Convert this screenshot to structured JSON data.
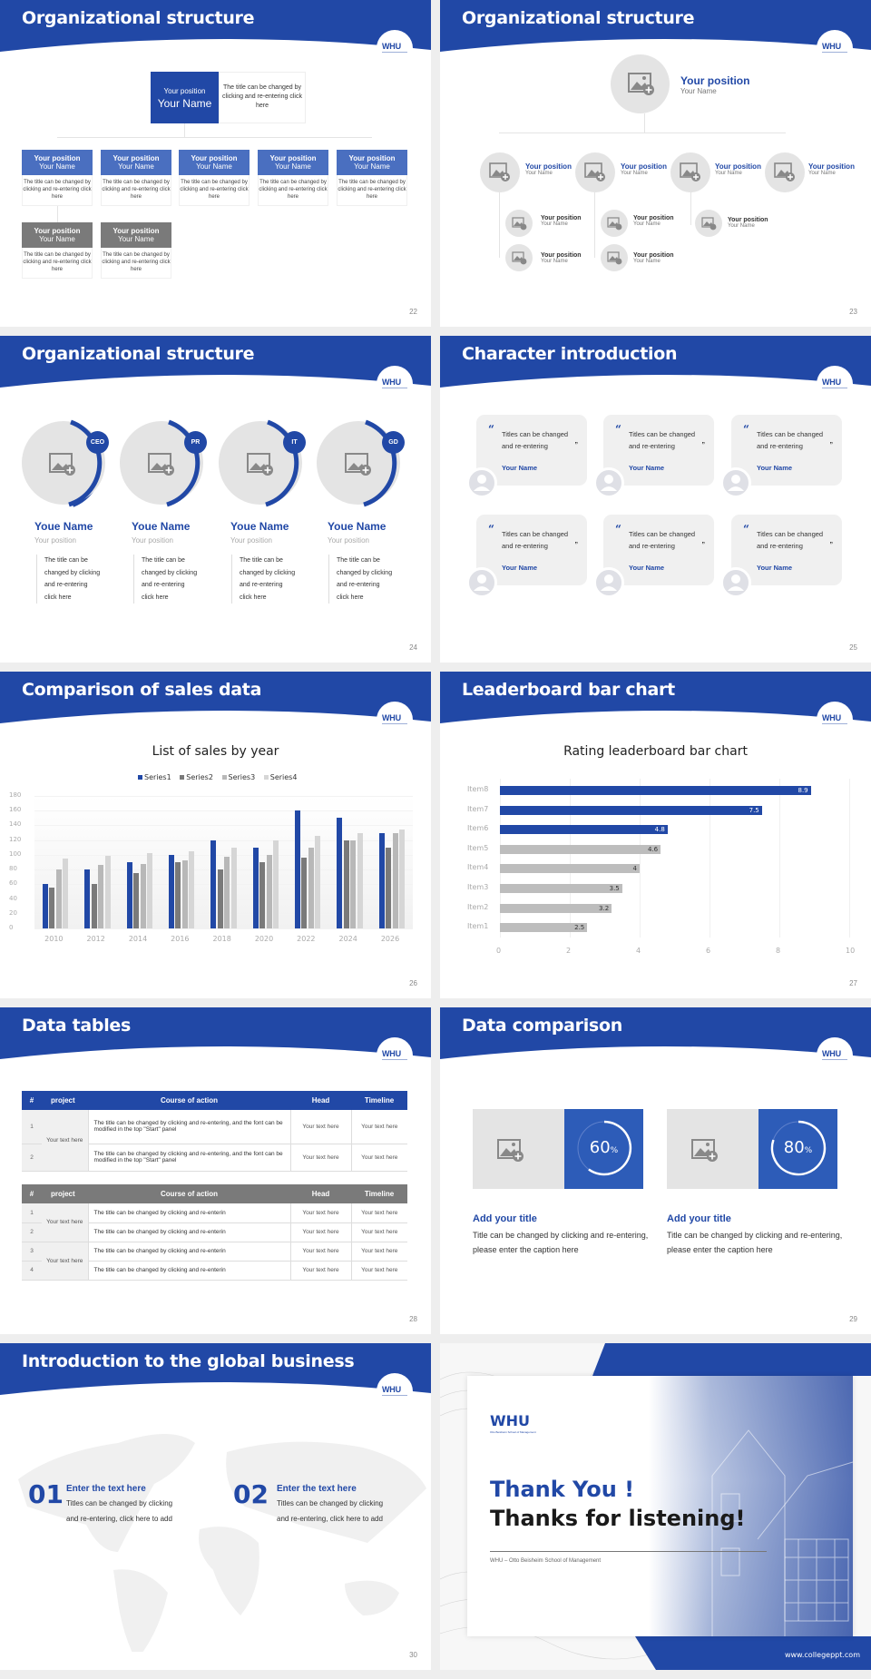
{
  "brand": {
    "primary": "#2148a6",
    "secondary_blue": "#4a6fc0",
    "gray": "#7a7a7a",
    "light_gray": "#e4e4e4",
    "logo_text": "WHU"
  },
  "slides": {
    "s22": {
      "title": "Organizational structure",
      "page": "22",
      "top": {
        "position": "Your position",
        "name": "Your Name",
        "desc": "The title can be changed by clicking and re-entering click here"
      },
      "boxes": [
        {
          "position": "Your position",
          "name": "Your Name",
          "desc": "The title can be changed by clicking and re-entering click here"
        },
        {
          "position": "Your position",
          "name": "Your Name",
          "desc": "The title can be changed by clicking and re-entering click here"
        },
        {
          "position": "Your position",
          "name": "Your Name",
          "desc": "The title can be changed by clicking and re-entering click here"
        },
        {
          "position": "Your position",
          "name": "Your Name",
          "desc": "The title can be changed by clicking and re-entering click here"
        },
        {
          "position": "Your position",
          "name": "Your Name",
          "desc": "The title can be changed by clicking and re-entering click here"
        }
      ],
      "sub_boxes": [
        {
          "position": "Your position",
          "name": "Your Name",
          "desc": "The title can be changed by clicking and re-entering click here"
        },
        {
          "position": "Your position",
          "name": "Your Name",
          "desc": "The title can be changed by clicking and re-entering click here"
        }
      ]
    },
    "s23": {
      "title": "Organizational structure",
      "page": "23",
      "top": {
        "position": "Your position",
        "name": "Your Name"
      },
      "level1": [
        {
          "position": "Your position",
          "name": "Your Name"
        },
        {
          "position": "Your position",
          "name": "Your Name"
        },
        {
          "position": "Your position",
          "name": "Your Name"
        },
        {
          "position": "Your position",
          "name": "Your Name"
        }
      ],
      "level2": [
        {
          "position": "Your position",
          "name": "Your Name"
        },
        {
          "position": "Your position",
          "name": "Your Name"
        },
        {
          "position": "Your position",
          "name": "Your Name"
        },
        {
          "position": "Your position",
          "name": "Your Name"
        },
        {
          "position": "Your position",
          "name": "Your Name"
        }
      ]
    },
    "s24": {
      "title": "Organizational structure",
      "page": "24",
      "people": [
        {
          "role": "CEO",
          "name": "Youe Name",
          "position": "Your position",
          "desc": [
            "The title can be",
            "changed by clicking",
            "and re-entering",
            "click here"
          ]
        },
        {
          "role": "PR",
          "name": "Youe Name",
          "position": "Your position",
          "desc": [
            "The title can be",
            "changed by clicking",
            "and re-entering",
            "click here"
          ]
        },
        {
          "role": "IT",
          "name": "Youe Name",
          "position": "Your position",
          "desc": [
            "The title can be",
            "changed by clicking",
            "and re-entering",
            "click here"
          ]
        },
        {
          "role": "GD",
          "name": "Youe Name",
          "position": "Your position",
          "desc": [
            "The title can be",
            "changed by clicking",
            "and re-entering",
            "click here"
          ]
        }
      ]
    },
    "s25": {
      "title": "Character introduction",
      "page": "25",
      "cards": [
        {
          "line1": "Titles can be changed",
          "line2": "and re-entering",
          "name": "Your Name"
        },
        {
          "line1": "Titles can be changed",
          "line2": "and re-entering",
          "name": "Your Name"
        },
        {
          "line1": "Titles can be changed",
          "line2": "and re-entering",
          "name": "Your Name"
        },
        {
          "line1": "Titles can be changed",
          "line2": "and re-entering",
          "name": "Your Name"
        },
        {
          "line1": "Titles can be changed",
          "line2": "and re-entering",
          "name": "Your Name"
        },
        {
          "line1": "Titles can be changed",
          "line2": "and re-entering",
          "name": "Your Name"
        }
      ],
      "quote_open": "“",
      "quote_close": "”"
    },
    "s26": {
      "title": "Comparison of sales data",
      "page": "26"
    },
    "s27": {
      "title": "Leaderboard bar chart",
      "page": "27"
    },
    "s28": {
      "title": "Data tables",
      "page": "28",
      "headers": [
        "#",
        "project",
        "Course of action",
        "Head",
        "Timeline"
      ],
      "table1": {
        "project": "Your text here",
        "rows": [
          {
            "idx": "1",
            "action": "The title can be changed by clicking and re-entering, and the font can be modified in the top \"Start\" panel",
            "head": "Your text here",
            "timeline": "Your text here"
          },
          {
            "idx": "2",
            "action": "The title can be changed by clicking and re-entering, and the font can be modified in the top \"Start\" panel",
            "head": "Your text here",
            "timeline": "Your text here"
          }
        ]
      },
      "table2": {
        "projects": [
          "Your text here",
          "Your text here"
        ],
        "rows": [
          {
            "idx": "1",
            "action": "The title can be changed by clicking and re-enterin",
            "head": "Your text here",
            "timeline": "Your text here"
          },
          {
            "idx": "2",
            "action": "The title can be changed by clicking and re-enterin",
            "head": "Your text here",
            "timeline": "Your text here"
          },
          {
            "idx": "3",
            "action": "The title can be changed by clicking and re-enterin",
            "head": "Your text here",
            "timeline": "Your text here"
          },
          {
            "idx": "4",
            "action": "The title can be changed by clicking and re-enterin",
            "head": "Your text here",
            "timeline": "Your text here"
          }
        ]
      }
    },
    "s29": {
      "title": "Data comparison",
      "page": "29",
      "items": [
        {
          "pct": "60",
          "pct_sign": "%",
          "heading": "Add your title",
          "desc": "Title can be changed by clicking and re-entering, please enter the caption here"
        },
        {
          "pct": "80",
          "pct_sign": "%",
          "heading": "Add your title",
          "desc": "Title can be changed by clicking and re-entering, please enter the caption here"
        }
      ]
    },
    "s30": {
      "title": "Introduction to the global business",
      "page": "30",
      "items": [
        {
          "num": "01",
          "heading": "Enter the text here",
          "line1": "Titles can be changed by clicking",
          "line2": "and re-entering, click here to add"
        },
        {
          "num": "02",
          "heading": "Enter the text here",
          "line1": "Titles can be changed by clicking",
          "line2": "and re-entering, click here to add"
        }
      ]
    },
    "s31": {
      "logo": "WHU",
      "logo_sub": "Otto Beisheim School of Management",
      "line1": "Thank You !",
      "line2": "Thanks for listening!",
      "subtitle": "WHU – Otto Beisheim School of Management",
      "url": "www.collegeppt.com"
    }
  },
  "chart_data": [
    {
      "type": "bar",
      "title": "List of sales by year",
      "categories": [
        "2010",
        "2012",
        "2014",
        "2016",
        "2018",
        "2020",
        "2022",
        "2024",
        "2026"
      ],
      "series": [
        {
          "name": "Series1",
          "color": "#2148a6",
          "values": [
            60,
            80,
            90,
            100,
            120,
            110,
            160,
            150,
            130
          ]
        },
        {
          "name": "Series2",
          "color": "#7a7a7a",
          "values": [
            55,
            60,
            75,
            90,
            80,
            90,
            96,
            120,
            110
          ]
        },
        {
          "name": "Series3",
          "color": "#b8b8b8",
          "values": [
            80,
            86,
            88,
            92,
            98,
            100,
            110,
            120,
            130
          ]
        },
        {
          "name": "Series4",
          "color": "#d6d6d6",
          "values": [
            95,
            99,
            102,
            105,
            110,
            120,
            126,
            130,
            135
          ]
        }
      ],
      "yticks": [
        "0",
        "20",
        "40",
        "60",
        "80",
        "100",
        "120",
        "140",
        "160",
        "180"
      ],
      "ylim": [
        0,
        180
      ],
      "xlabel": "",
      "ylabel": "",
      "legend_position": "top",
      "grid": true
    },
    {
      "type": "bar",
      "orientation": "horizontal",
      "title": "Rating leaderboard bar chart",
      "categories": [
        "Item8",
        "Item7",
        "Item6",
        "Item5",
        "Item4",
        "Item3",
        "Item2",
        "Item1"
      ],
      "values": [
        8.9,
        7.5,
        4.8,
        4.6,
        4,
        3.5,
        3.2,
        2.5
      ],
      "labels": [
        "8.9",
        "7.5",
        "4.8",
        "4.6",
        "4",
        "3.5",
        "3.2",
        "2.5"
      ],
      "highlight_top": 3,
      "xticks": [
        "0",
        "2",
        "4",
        "6",
        "8",
        "10"
      ],
      "xlim": [
        0,
        10
      ],
      "grid": true
    }
  ]
}
